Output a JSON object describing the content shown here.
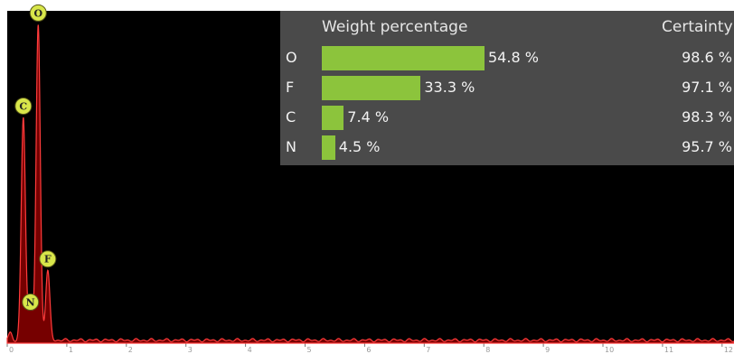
{
  "chart_data": {
    "type": "line",
    "title": "",
    "xlabel": "",
    "ylabel": "",
    "x_ticks": [
      "0",
      "1",
      "2",
      "3",
      "4",
      "5",
      "6",
      "7",
      "8",
      "9",
      "10",
      "11",
      "12"
    ],
    "xlim": [
      0,
      12.2
    ],
    "ylim": [
      0,
      100
    ],
    "series_color": "#8b0000",
    "fill_color": "#8b0000",
    "peaks": [
      {
        "element": "C",
        "x": 0.27,
        "y": 67
      },
      {
        "element": "N",
        "x": 0.39,
        "y": 11
      },
      {
        "element": "O",
        "x": 0.52,
        "y": 95
      },
      {
        "element": "F",
        "x": 0.68,
        "y": 21
      }
    ],
    "peak_label_color": "#d8e64a"
  },
  "results_table": {
    "header_weight": "Weight percentage",
    "header_certainty": "Certainty",
    "bar_color": "#8cc43c",
    "rows": [
      {
        "element": "O",
        "weight_pct": 54.8,
        "weight_label": "54.8 %",
        "certainty": "98.6 %"
      },
      {
        "element": "F",
        "weight_pct": 33.3,
        "weight_label": "33.3 %",
        "certainty": "97.1 %"
      },
      {
        "element": "C",
        "weight_pct": 7.4,
        "weight_label": "7.4 %",
        "certainty": "98.3 %"
      },
      {
        "element": "N",
        "weight_pct": 4.5,
        "weight_label": "4.5 %",
        "certainty": "95.7 %"
      }
    ]
  }
}
